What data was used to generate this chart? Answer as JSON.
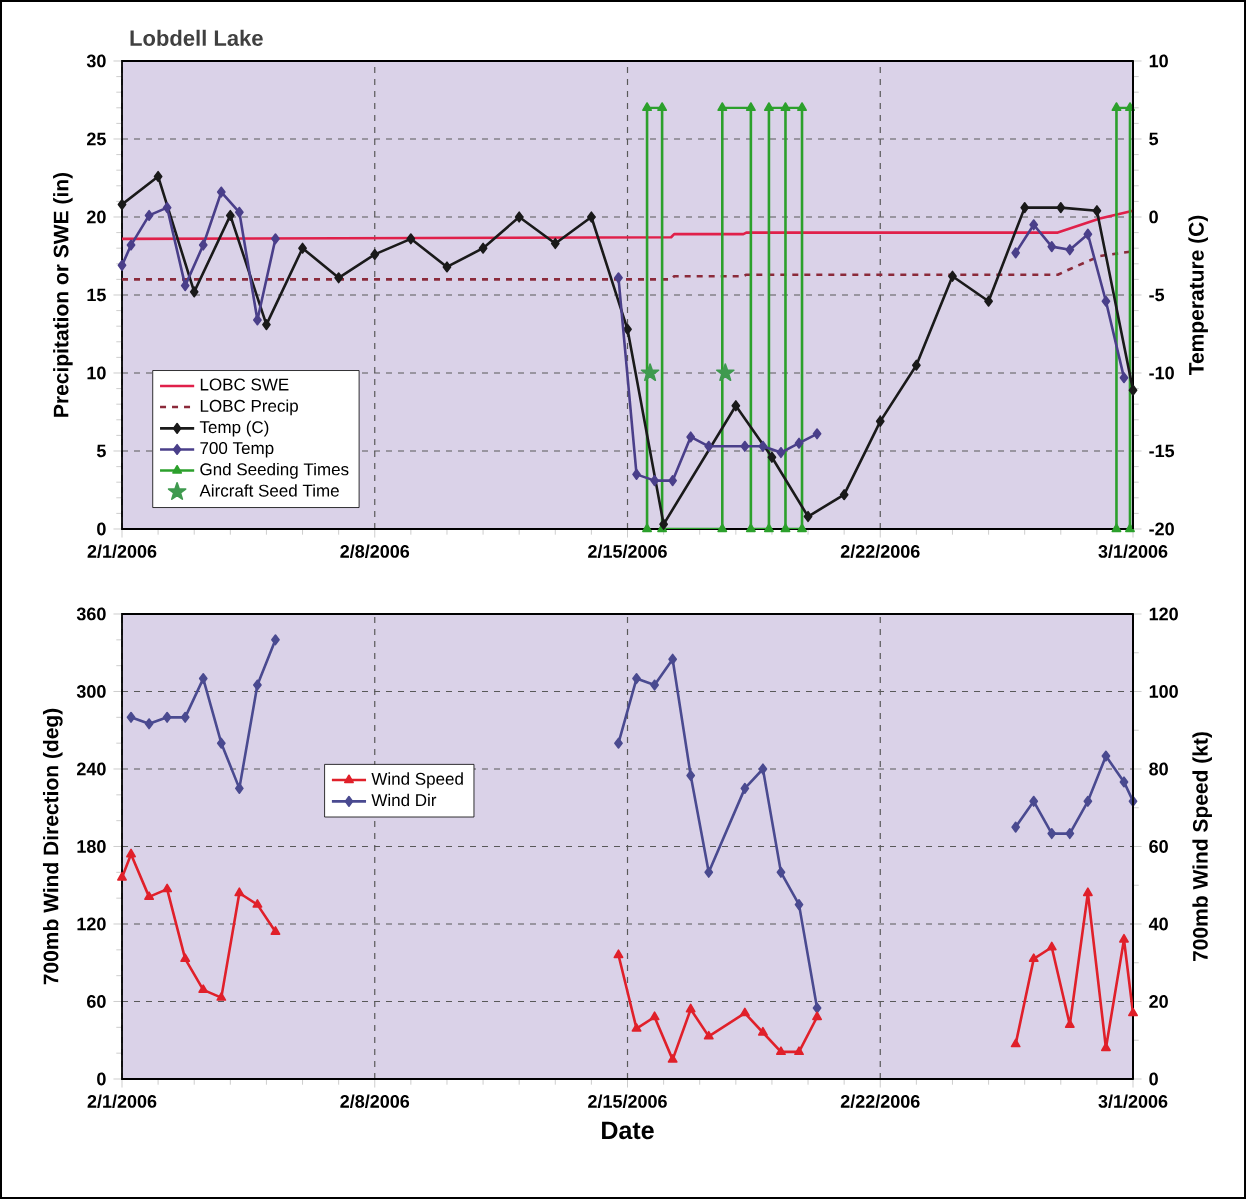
{
  "chart_data": [
    {
      "type": "line",
      "title": "Lobdell Lake",
      "ylabel": "Precipitation or SWE (in)",
      "y2label": "Temperature (C)",
      "xlim": [
        "2006-02-01",
        "2006-03-01"
      ],
      "xticks": [
        {
          "value": "2006-02-01",
          "label": "2/1/2006"
        },
        {
          "value": "2006-02-08",
          "label": "2/8/2006"
        },
        {
          "value": "2006-02-15",
          "label": "2/15/2006"
        },
        {
          "value": "2006-02-22",
          "label": "2/22/2006"
        },
        {
          "value": "2006-03-01",
          "label": "3/1/2006"
        }
      ],
      "ylim": [
        0,
        30
      ],
      "yticks": [
        0,
        5,
        10,
        15,
        20,
        25,
        30
      ],
      "y2lim": [
        -20,
        10
      ],
      "y2ticks": [
        -20,
        -15,
        -10,
        -5,
        0,
        5,
        10
      ],
      "grid": true,
      "legend": "bottom left",
      "series": [
        {
          "name": "LOBC SWE",
          "color": "#e0204a",
          "marker": "none",
          "x": [
            "2006-02-01",
            "2006-02-16T05:00",
            "2006-02-16T07:00",
            "2006-02-18T05:00",
            "2006-02-18T07:00",
            "2006-02-26T22:00",
            "2006-02-28T02:00",
            "2006-03-01"
          ],
          "values": [
            18.6,
            18.7,
            18.9,
            18.9,
            19.0,
            19.0,
            19.9,
            20.4
          ]
        },
        {
          "name": "LOBC Precip",
          "color": "#8b2a3a",
          "marker": "none",
          "line_style": "dashed",
          "x": [
            "2006-02-01",
            "2006-02-16T05:00",
            "2006-02-16T07:00",
            "2006-02-18T05:00",
            "2006-02-18T07:00",
            "2006-02-26T22:00",
            "2006-02-27T07:00",
            "2006-02-28T02:00",
            "2006-03-01"
          ],
          "values": [
            16.0,
            16.0,
            16.2,
            16.2,
            16.3,
            16.3,
            16.7,
            17.5,
            17.8
          ]
        },
        {
          "name": "Temp (C)",
          "color": "#1a1a1a",
          "marker": "diamond",
          "axis": "y2",
          "x": [
            "2006-02-01",
            "2006-02-02",
            "2006-02-03",
            "2006-02-04",
            "2006-02-05",
            "2006-02-06",
            "2006-02-07",
            "2006-02-08",
            "2006-02-09",
            "2006-02-10",
            "2006-02-11",
            "2006-02-12",
            "2006-02-13",
            "2006-02-14",
            "2006-02-15",
            "2006-02-16",
            "2006-02-18",
            "2006-02-19",
            "2006-02-20",
            "2006-02-21",
            "2006-02-22",
            "2006-02-23",
            "2006-02-24",
            "2006-02-25",
            "2006-02-26",
            "2006-02-27",
            "2006-02-28",
            "2006-03-01"
          ],
          "values": [
            0.8,
            2.6,
            -4.8,
            0.1,
            -6.9,
            -2.0,
            -3.9,
            -2.4,
            -1.4,
            -3.2,
            -2.0,
            0.0,
            -1.7,
            0.0,
            -7.2,
            -19.7,
            -12.1,
            -15.4,
            -19.2,
            -17.8,
            -13.1,
            -9.5,
            -3.8,
            -5.4,
            0.6,
            0.6,
            0.4,
            -11.1
          ]
        },
        {
          "name": "700 Temp",
          "color": "#4a3f8a",
          "marker": "diamond",
          "axis": "y2",
          "x": [
            "2006-02-01",
            "2006-02-01T06:00",
            "2006-02-01T18:00",
            "2006-02-02T06:00",
            "2006-02-02T18:00",
            "2006-02-03T06:00",
            "2006-02-03T18:00",
            "2006-02-04T06:00",
            "2006-02-04T18:00",
            "2006-02-05T06:00",
            "2006-02-10",
            "2006-02-14T18:00",
            "2006-02-15T06:00",
            "2006-02-15T18:00",
            "2006-02-16T06:00",
            "2006-02-16T18:00",
            "2006-02-17T06:00",
            "2006-02-18T06:00",
            "2006-02-18T18:00",
            "2006-02-19T06:00",
            "2006-02-19T18:00",
            "2006-02-20T06:00",
            "2006-02-23",
            "2006-02-25T18:00",
            "2006-02-26T06:00",
            "2006-02-26T18:00",
            "2006-02-27T06:00",
            "2006-02-27T18:00",
            "2006-02-28T06:00",
            "2006-02-28T18:00"
          ],
          "values": [
            -3.1,
            -1.8,
            0.1,
            0.6,
            -4.4,
            -1.8,
            1.6,
            0.3,
            -6.6,
            -1.4,
            null,
            -3.9,
            -16.5,
            -16.9,
            -16.9,
            -14.1,
            -14.7,
            -14.7,
            -14.7,
            -15.1,
            -14.5,
            -13.9,
            null,
            -2.3,
            -0.5,
            -1.9,
            -2.1,
            -1.1,
            -5.4,
            -10.3
          ]
        },
        {
          "name": "Gnd Seeding Times",
          "color": "#2ca02c",
          "marker": "triangle",
          "x": [
            "2006-02-15T13:00",
            "2006-02-15T13:00",
            "2006-02-15T23:00",
            "2006-02-15T23:00",
            "2006-02-17T15:00",
            "2006-02-17T15:00",
            "2006-02-18T10:00",
            "2006-02-18T10:00",
            "2006-02-18T22:00",
            "2006-02-18T22:00",
            "2006-02-19T20:00",
            "2006-02-19T20:00",
            "2006-02-19T09:00",
            "2006-02-19T09:00",
            "2006-02-24",
            "2006-02-28T13:00",
            "2006-02-28T13:00",
            "2006-02-28T22:00",
            "2006-02-28T22:00"
          ],
          "values": [
            0,
            27,
            27,
            0,
            0,
            27,
            27,
            0,
            0,
            27,
            27,
            0,
            0,
            27,
            null,
            0,
            27,
            27,
            0
          ]
        },
        {
          "name": "Aircraft Seed Time",
          "type": "scatter",
          "color": "#3f9a4f",
          "marker": "star",
          "x": [
            "2006-02-15T15:00",
            "2006-02-17T17:00"
          ],
          "values": [
            10,
            10
          ]
        }
      ]
    },
    {
      "type": "line",
      "xlabel": "Date",
      "ylabel": "700mb Wind Direction (deg)",
      "y2label": "700mb Wind Speed (kt)",
      "xlim": [
        "2006-02-01",
        "2006-03-01"
      ],
      "xticks": [
        {
          "value": "2006-02-01",
          "label": "2/1/2006"
        },
        {
          "value": "2006-02-08",
          "label": "2/8/2006"
        },
        {
          "value": "2006-02-15",
          "label": "2/15/2006"
        },
        {
          "value": "2006-02-22",
          "label": "2/22/2006"
        },
        {
          "value": "2006-03-01",
          "label": "3/1/2006"
        }
      ],
      "ylim": [
        0,
        360
      ],
      "yticks": [
        0,
        60,
        120,
        180,
        240,
        300,
        360
      ],
      "y2lim": [
        0,
        120
      ],
      "y2ticks": [
        0,
        20,
        40,
        60,
        80,
        100,
        120
      ],
      "grid": true,
      "legend": "left",
      "series": [
        {
          "name": "Wind Speed",
          "color": "#e0202a",
          "marker": "triangle",
          "axis": "y2",
          "x": [
            "2006-02-01",
            "2006-02-01T06:00",
            "2006-02-01T18:00",
            "2006-02-02T06:00",
            "2006-02-02T18:00",
            "2006-02-03T06:00",
            "2006-02-03T18:00",
            "2006-02-04T06:00",
            "2006-02-04T18:00",
            "2006-02-05T06:00",
            "2006-02-10",
            "2006-02-14T18:00",
            "2006-02-15T06:00",
            "2006-02-15T18:00",
            "2006-02-16T06:00",
            "2006-02-16T18:00",
            "2006-02-17T06:00",
            "2006-02-18T06:00",
            "2006-02-18T18:00",
            "2006-02-19T06:00",
            "2006-02-19T18:00",
            "2006-02-20T06:00",
            "2006-02-23",
            "2006-02-25T18:00",
            "2006-02-26T06:00",
            "2006-02-26T18:00",
            "2006-02-27T06:00",
            "2006-02-27T18:00",
            "2006-02-28T06:00",
            "2006-02-28T18:00",
            "2006-03-01"
          ],
          "values": [
            52,
            58,
            47,
            49,
            31,
            23,
            21,
            48,
            45,
            38,
            null,
            32,
            13,
            16,
            5,
            18,
            11,
            17,
            12,
            7,
            7,
            16,
            null,
            9,
            31,
            34,
            14,
            48,
            8,
            36,
            17
          ]
        },
        {
          "name": "Wind Dir",
          "color": "#4a4a90",
          "marker": "diamond",
          "x": [
            "2006-02-01T06:00",
            "2006-02-01T18:00",
            "2006-02-02T06:00",
            "2006-02-02T18:00",
            "2006-02-03T06:00",
            "2006-02-03T18:00",
            "2006-02-04T06:00",
            "2006-02-04T18:00",
            "2006-02-05T06:00",
            "2006-02-10",
            "2006-02-14T18:00",
            "2006-02-15T06:00",
            "2006-02-15T18:00",
            "2006-02-16T06:00",
            "2006-02-16T18:00",
            "2006-02-17T06:00",
            "2006-02-18T06:00",
            "2006-02-18T18:00",
            "2006-02-19T06:00",
            "2006-02-19T18:00",
            "2006-02-20T06:00",
            "2006-02-23",
            "2006-02-25T18:00",
            "2006-02-26T06:00",
            "2006-02-26T18:00",
            "2006-02-27T06:00",
            "2006-02-27T18:00",
            "2006-02-28T06:00",
            "2006-02-28T18:00",
            "2006-03-01"
          ],
          "values": [
            280,
            275,
            280,
            280,
            310,
            260,
            225,
            305,
            340,
            null,
            260,
            310,
            305,
            325,
            235,
            160,
            225,
            240,
            160,
            135,
            55,
            null,
            195,
            215,
            190,
            190,
            215,
            250,
            230,
            215
          ]
        }
      ]
    }
  ]
}
